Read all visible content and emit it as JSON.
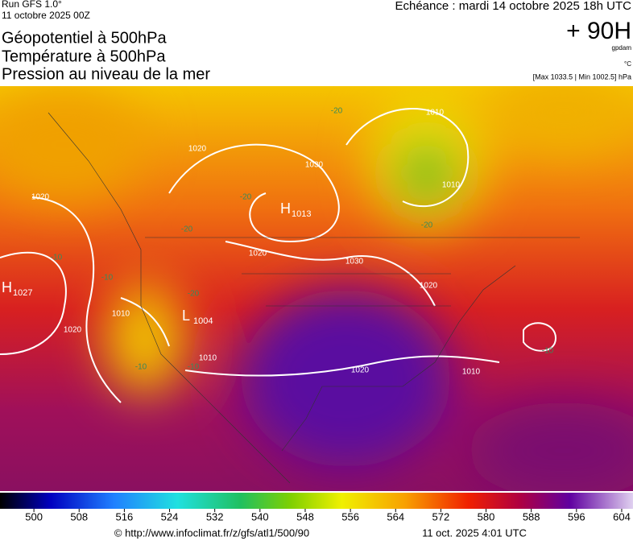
{
  "header": {
    "run": "Run GFS 1.0°",
    "run_date": "11 octobre 2025 00Z",
    "lines": [
      "Géopotentiel à 500hPa",
      "Température à 500hPa",
      "Pression au niveau de la mer"
    ],
    "valid": "Echéance : mardi 14 octobre 2025 18h UTC",
    "lead": "+ 90H",
    "unit_geo": "gpdam",
    "unit_temp": "°C",
    "pressure_range": "[Max 1033.5 | Min 1002.5] hPa"
  },
  "map": {
    "centers": [
      {
        "symbol": "H",
        "value": "1013"
      },
      {
        "symbol": "H",
        "value": "1027"
      },
      {
        "symbol": "L",
        "value": "1004"
      }
    ],
    "isobar_labels": [
      "1020",
      "1020",
      "1030",
      "1020",
      "1030",
      "1020",
      "1010",
      "1010",
      "1010",
      "1020",
      "1010",
      "1020",
      "1010"
    ],
    "temperature_labels": [
      "-20",
      "-20",
      "-20",
      "-20",
      "-20",
      "-10",
      "-10",
      "-10",
      "-10",
      "-10"
    ]
  },
  "colorbar": {
    "lim": [
      494,
      606
    ],
    "ticks": [
      500,
      508,
      516,
      524,
      532,
      540,
      548,
      556,
      564,
      572,
      580,
      588,
      596,
      604
    ]
  },
  "footer": {
    "source": "© http://www.infoclimat.fr/z/gfs/atl1/500/90",
    "generated": "11 oct. 2025  4:01 UTC"
  }
}
